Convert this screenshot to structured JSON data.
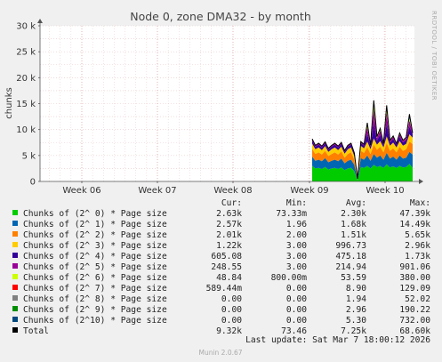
{
  "chart_data": {
    "type": "area",
    "title": "Node 0, zone DMA32 - by month",
    "ylabel": "chunks",
    "y_ticks": [
      "0",
      "5 k",
      "10 k",
      "15 k",
      "20 k",
      "25 k",
      "30 k"
    ],
    "ylim": [
      0,
      30000
    ],
    "x_ticks": [
      "Week 06",
      "Week 07",
      "Week 08",
      "Week 09",
      "Week 10"
    ],
    "grid": true,
    "stacked": true,
    "side_label": "RRDTOOL / TOBI OETIKER",
    "x": [
      "Week 09",
      "",
      "",
      "",
      "",
      "",
      "",
      "",
      "",
      "",
      "",
      "",
      "",
      "",
      "",
      "",
      "",
      "Week 10",
      "",
      "",
      "",
      "",
      "",
      "",
      "",
      "",
      "",
      "",
      "",
      "",
      "",
      ""
    ],
    "series": [
      {
        "name": "Chunks of (2^ 0) * Page size",
        "color": "#00cc00",
        "values": [
          3000,
          2500,
          2600,
          2400,
          2800,
          2300,
          2500,
          2600,
          2400,
          2700,
          2200,
          2500,
          2600,
          2000,
          200,
          2800,
          2600,
          3000,
          2500,
          3200,
          2800,
          3000,
          2600,
          3300,
          2700,
          2900,
          2600,
          3000,
          2700,
          2800,
          3400,
          2630
        ]
      },
      {
        "name": "Chunks of (2^ 1) * Page size",
        "color": "#0066b3",
        "values": [
          1800,
          1500,
          1600,
          1500,
          1700,
          1400,
          1500,
          1600,
          1500,
          1700,
          1300,
          1500,
          1600,
          1200,
          100,
          1700,
          1600,
          2000,
          1500,
          2100,
          1800,
          2000,
          1600,
          2200,
          1700,
          1900,
          1600,
          2000,
          1700,
          1800,
          2300,
          2570
        ]
      },
      {
        "name": "Chunks of (2^ 2) * Page size",
        "color": "#ff8000",
        "values": [
          1500,
          1300,
          1400,
          1300,
          1400,
          1200,
          1300,
          1400,
          1300,
          1400,
          1100,
          1300,
          1400,
          1000,
          100,
          1400,
          1300,
          1600,
          1300,
          1800,
          1500,
          1700,
          1400,
          1900,
          1500,
          1600,
          1400,
          1700,
          1500,
          1600,
          2000,
          2010
        ]
      },
      {
        "name": "Chunks of (2^ 3) * Page size",
        "color": "#ffcc00",
        "values": [
          1000,
          900,
          950,
          850,
          900,
          800,
          900,
          950,
          850,
          900,
          750,
          900,
          950,
          700,
          50,
          950,
          900,
          1100,
          900,
          1200,
          1000,
          1100,
          950,
          1300,
          1000,
          1100,
          950,
          1100,
          1000,
          1050,
          1400,
          1220
        ]
      },
      {
        "name": "Chunks of (2^ 4) * Page size",
        "color": "#330099",
        "values": [
          600,
          500,
          550,
          500,
          550,
          450,
          500,
          550,
          500,
          550,
          400,
          500,
          550,
          400,
          30,
          550,
          500,
          1500,
          500,
          3000,
          800,
          1200,
          500,
          2500,
          600,
          700,
          500,
          800,
          600,
          700,
          1500,
          605
        ]
      },
      {
        "name": "Chunks of (2^ 5) * Page size",
        "color": "#990099",
        "values": [
          250,
          200,
          220,
          200,
          220,
          180,
          200,
          220,
          200,
          220,
          160,
          200,
          220,
          160,
          10,
          220,
          200,
          1200,
          200,
          2500,
          500,
          800,
          200,
          2000,
          300,
          400,
          200,
          500,
          300,
          400,
          1200,
          249
        ]
      },
      {
        "name": "Chunks of (2^ 6) * Page size",
        "color": "#ccff00",
        "values": [
          60,
          50,
          50,
          50,
          50,
          40,
          50,
          50,
          50,
          50,
          40,
          50,
          50,
          40,
          5,
          50,
          50,
          400,
          50,
          800,
          150,
          250,
          50,
          600,
          80,
          100,
          50,
          150,
          80,
          100,
          300,
          49
        ]
      },
      {
        "name": "Chunks of (2^ 7) * Page size",
        "color": "#ff0000",
        "values": [
          5,
          5,
          5,
          5,
          5,
          5,
          5,
          5,
          5,
          5,
          5,
          5,
          5,
          5,
          0,
          5,
          5,
          60,
          5,
          100,
          20,
          30,
          5,
          80,
          10,
          10,
          5,
          15,
          10,
          10,
          40,
          1
        ]
      },
      {
        "name": "Chunks of (2^ 8) * Page size",
        "color": "#808080",
        "values": [
          0,
          0,
          0,
          0,
          0,
          0,
          0,
          0,
          0,
          0,
          0,
          0,
          0,
          0,
          0,
          0,
          0,
          30,
          0,
          50,
          5,
          10,
          0,
          40,
          5,
          5,
          0,
          5,
          5,
          5,
          20,
          0
        ]
      },
      {
        "name": "Chunks of (2^ 9) * Page size",
        "color": "#008f00",
        "values": [
          0,
          0,
          0,
          0,
          0,
          0,
          0,
          0,
          0,
          0,
          0,
          0,
          0,
          0,
          0,
          0,
          0,
          100,
          0,
          190,
          10,
          30,
          0,
          150,
          10,
          10,
          0,
          20,
          10,
          10,
          80,
          0
        ]
      },
      {
        "name": "Chunks of (2^10) * Page size",
        "color": "#00487d",
        "values": [
          0,
          0,
          0,
          0,
          0,
          0,
          0,
          0,
          0,
          0,
          0,
          0,
          0,
          0,
          0,
          0,
          0,
          300,
          0,
          700,
          50,
          100,
          0,
          600,
          30,
          30,
          0,
          60,
          30,
          30,
          732,
          0
        ]
      }
    ]
  },
  "legend": {
    "headers": {
      "cur": "Cur:",
      "min": "Min:",
      "avg": "Avg:",
      "max": "Max:"
    },
    "rows": [
      {
        "label": "Chunks of (2^ 0) * Page size",
        "color": "#00cc00",
        "cur": "2.63k",
        "min": "73.33m",
        "avg": "2.30k",
        "max": "47.39k"
      },
      {
        "label": "Chunks of (2^ 1) * Page size",
        "color": "#0066b3",
        "cur": "2.57k",
        "min": "1.96",
        "avg": "1.68k",
        "max": "14.49k"
      },
      {
        "label": "Chunks of (2^ 2) * Page size",
        "color": "#ff8000",
        "cur": "2.01k",
        "min": "2.00",
        "avg": "1.51k",
        "max": "5.65k"
      },
      {
        "label": "Chunks of (2^ 3) * Page size",
        "color": "#ffcc00",
        "cur": "1.22k",
        "min": "3.00",
        "avg": "996.73",
        "max": "2.96k"
      },
      {
        "label": "Chunks of (2^ 4) * Page size",
        "color": "#330099",
        "cur": "605.08",
        "min": "3.00",
        "avg": "475.18",
        "max": "1.73k"
      },
      {
        "label": "Chunks of (2^ 5) * Page size",
        "color": "#990099",
        "cur": "248.55",
        "min": "3.00",
        "avg": "214.94",
        "max": "901.06"
      },
      {
        "label": "Chunks of (2^ 6) * Page size",
        "color": "#ccff00",
        "cur": "48.84",
        "min": "800.00m",
        "avg": "53.59",
        "max": "380.00"
      },
      {
        "label": "Chunks of (2^ 7) * Page size",
        "color": "#ff0000",
        "cur": "589.44m",
        "min": "0.00",
        "avg": "8.90",
        "max": "129.09"
      },
      {
        "label": "Chunks of (2^ 8) * Page size",
        "color": "#808080",
        "cur": "0.00",
        "min": "0.00",
        "avg": "1.94",
        "max": "52.02"
      },
      {
        "label": "Chunks of (2^ 9) * Page size",
        "color": "#008f00",
        "cur": "0.00",
        "min": "0.00",
        "avg": "2.96",
        "max": "190.22"
      },
      {
        "label": "Chunks of (2^10) * Page size",
        "color": "#00487d",
        "cur": "0.00",
        "min": "0.00",
        "avg": "5.30",
        "max": "732.00"
      },
      {
        "label": "Total",
        "color": "#000000",
        "cur": "9.32k",
        "min": "73.46",
        "avg": "7.25k",
        "max": "68.60k"
      }
    ]
  },
  "last_update": "Last update: Sat Mar  7 18:00:12 2026",
  "footer": "Munin 2.0.67"
}
